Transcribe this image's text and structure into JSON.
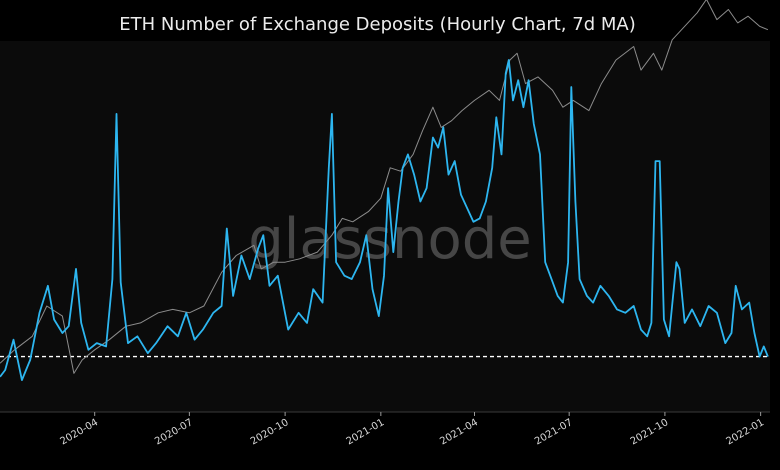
{
  "chart_data": {
    "type": "line",
    "title": "ETH Number of Exchange Deposits (Hourly Chart, 7d MA)",
    "watermark": "glassnode",
    "x_start": "2020-01-01",
    "x_end": "2022-01-10",
    "x_ticks": [
      "2020-04",
      "2020-07",
      "2020-10",
      "2021-01",
      "2021-04",
      "2021-07",
      "2021-10",
      "2022-01"
    ],
    "reference_line": {
      "style": "dashed",
      "color": "#ffffff",
      "y": 0.12
    },
    "colors": {
      "background": "#0b0b0b",
      "deposits": "#2db6f0",
      "price": "#8c8c8c"
    },
    "series": [
      {
        "color": "#2db6f0",
        "points": [
          [
            "2020-01-01",
            0.06
          ],
          [
            "2020-01-06",
            0.08
          ],
          [
            "2020-01-14",
            0.17
          ],
          [
            "2020-01-22",
            0.05
          ],
          [
            "2020-01-30",
            0.11
          ],
          [
            "2020-02-08",
            0.25
          ],
          [
            "2020-02-16",
            0.33
          ],
          [
            "2020-02-22",
            0.23
          ],
          [
            "2020-03-01",
            0.19
          ],
          [
            "2020-03-07",
            0.21
          ],
          [
            "2020-03-14",
            0.38
          ],
          [
            "2020-03-19",
            0.22
          ],
          [
            "2020-03-26",
            0.14
          ],
          [
            "2020-04-03",
            0.16
          ],
          [
            "2020-04-12",
            0.15
          ],
          [
            "2020-04-18",
            0.35
          ],
          [
            "2020-04-22",
            0.84
          ],
          [
            "2020-04-26",
            0.34
          ],
          [
            "2020-05-03",
            0.16
          ],
          [
            "2020-05-12",
            0.18
          ],
          [
            "2020-05-22",
            0.13
          ],
          [
            "2020-05-30",
            0.16
          ],
          [
            "2020-06-10",
            0.21
          ],
          [
            "2020-06-20",
            0.18
          ],
          [
            "2020-06-28",
            0.25
          ],
          [
            "2020-07-06",
            0.17
          ],
          [
            "2020-07-14",
            0.2
          ],
          [
            "2020-07-24",
            0.25
          ],
          [
            "2020-08-01",
            0.27
          ],
          [
            "2020-08-06",
            0.5
          ],
          [
            "2020-08-12",
            0.3
          ],
          [
            "2020-08-20",
            0.42
          ],
          [
            "2020-08-28",
            0.35
          ],
          [
            "2020-09-05",
            0.44
          ],
          [
            "2020-09-10",
            0.48
          ],
          [
            "2020-09-16",
            0.33
          ],
          [
            "2020-09-24",
            0.36
          ],
          [
            "2020-10-04",
            0.2
          ],
          [
            "2020-10-14",
            0.25
          ],
          [
            "2020-10-22",
            0.22
          ],
          [
            "2020-10-28",
            0.32
          ],
          [
            "2020-11-06",
            0.28
          ],
          [
            "2020-11-12",
            0.68
          ],
          [
            "2020-11-15",
            0.84
          ],
          [
            "2020-11-19",
            0.4
          ],
          [
            "2020-11-27",
            0.36
          ],
          [
            "2020-12-04",
            0.35
          ],
          [
            "2020-12-12",
            0.4
          ],
          [
            "2020-12-18",
            0.48
          ],
          [
            "2020-12-24",
            0.32
          ],
          [
            "2020-12-30",
            0.24
          ],
          [
            "2021-01-04",
            0.36
          ],
          [
            "2021-01-08",
            0.62
          ],
          [
            "2021-01-13",
            0.43
          ],
          [
            "2021-01-18",
            0.58
          ],
          [
            "2021-01-22",
            0.68
          ],
          [
            "2021-01-27",
            0.72
          ],
          [
            "2021-02-02",
            0.66
          ],
          [
            "2021-02-08",
            0.58
          ],
          [
            "2021-02-14",
            0.62
          ],
          [
            "2021-02-20",
            0.77
          ],
          [
            "2021-02-25",
            0.74
          ],
          [
            "2021-03-02",
            0.8
          ],
          [
            "2021-03-07",
            0.66
          ],
          [
            "2021-03-13",
            0.7
          ],
          [
            "2021-03-19",
            0.6
          ],
          [
            "2021-03-25",
            0.56
          ],
          [
            "2021-03-31",
            0.52
          ],
          [
            "2021-04-06",
            0.53
          ],
          [
            "2021-04-12",
            0.58
          ],
          [
            "2021-04-18",
            0.68
          ],
          [
            "2021-04-22",
            0.83
          ],
          [
            "2021-04-27",
            0.72
          ],
          [
            "2021-05-01",
            0.96
          ],
          [
            "2021-05-04",
            1.0
          ],
          [
            "2021-05-08",
            0.88
          ],
          [
            "2021-05-13",
            0.94
          ],
          [
            "2021-05-18",
            0.86
          ],
          [
            "2021-05-23",
            0.94
          ],
          [
            "2021-05-28",
            0.81
          ],
          [
            "2021-06-03",
            0.72
          ],
          [
            "2021-06-08",
            0.4
          ],
          [
            "2021-06-14",
            0.35
          ],
          [
            "2021-06-20",
            0.3
          ],
          [
            "2021-06-25",
            0.28
          ],
          [
            "2021-06-30",
            0.4
          ],
          [
            "2021-07-03",
            0.92
          ],
          [
            "2021-07-07",
            0.58
          ],
          [
            "2021-07-11",
            0.35
          ],
          [
            "2021-07-18",
            0.3
          ],
          [
            "2021-07-24",
            0.28
          ],
          [
            "2021-07-31",
            0.33
          ],
          [
            "2021-08-08",
            0.3
          ],
          [
            "2021-08-16",
            0.26
          ],
          [
            "2021-08-24",
            0.25
          ],
          [
            "2021-09-01",
            0.27
          ],
          [
            "2021-09-08",
            0.2
          ],
          [
            "2021-09-14",
            0.18
          ],
          [
            "2021-09-18",
            0.22
          ],
          [
            "2021-09-22",
            0.7
          ],
          [
            "2021-09-26",
            0.7
          ],
          [
            "2021-09-30",
            0.23
          ],
          [
            "2021-10-05",
            0.18
          ],
          [
            "2021-10-12",
            0.4
          ],
          [
            "2021-10-15",
            0.38
          ],
          [
            "2021-10-20",
            0.22
          ],
          [
            "2021-10-27",
            0.26
          ],
          [
            "2021-11-04",
            0.21
          ],
          [
            "2021-11-12",
            0.27
          ],
          [
            "2021-11-20",
            0.25
          ],
          [
            "2021-11-28",
            0.16
          ],
          [
            "2021-12-04",
            0.19
          ],
          [
            "2021-12-08",
            0.33
          ],
          [
            "2021-12-14",
            0.26
          ],
          [
            "2021-12-21",
            0.28
          ],
          [
            "2021-12-26",
            0.19
          ],
          [
            "2021-12-31",
            0.12
          ],
          [
            "2022-01-04",
            0.15
          ],
          [
            "2022-01-08",
            0.12
          ]
        ]
      },
      {
        "color": "#8c8c8c",
        "points": [
          [
            "2020-01-01",
            0.1
          ],
          [
            "2020-01-15",
            0.14
          ],
          [
            "2020-02-01",
            0.18
          ],
          [
            "2020-02-15",
            0.27
          ],
          [
            "2020-03-01",
            0.24
          ],
          [
            "2020-03-12",
            0.07
          ],
          [
            "2020-03-20",
            0.11
          ],
          [
            "2020-04-01",
            0.14
          ],
          [
            "2020-04-15",
            0.17
          ],
          [
            "2020-05-01",
            0.21
          ],
          [
            "2020-05-15",
            0.22
          ],
          [
            "2020-06-01",
            0.25
          ],
          [
            "2020-06-15",
            0.26
          ],
          [
            "2020-07-01",
            0.25
          ],
          [
            "2020-07-15",
            0.27
          ],
          [
            "2020-08-01",
            0.37
          ],
          [
            "2020-08-15",
            0.42
          ],
          [
            "2020-09-01",
            0.45
          ],
          [
            "2020-09-08",
            0.38
          ],
          [
            "2020-09-20",
            0.4
          ],
          [
            "2020-10-01",
            0.4
          ],
          [
            "2020-10-15",
            0.41
          ],
          [
            "2020-11-01",
            0.43
          ],
          [
            "2020-11-15",
            0.48
          ],
          [
            "2020-11-25",
            0.53
          ],
          [
            "2020-12-05",
            0.52
          ],
          [
            "2020-12-20",
            0.55
          ],
          [
            "2021-01-01",
            0.59
          ],
          [
            "2021-01-10",
            0.68
          ],
          [
            "2021-01-20",
            0.67
          ],
          [
            "2021-02-01",
            0.72
          ],
          [
            "2021-02-10",
            0.79
          ],
          [
            "2021-02-20",
            0.86
          ],
          [
            "2021-02-28",
            0.8
          ],
          [
            "2021-03-10",
            0.82
          ],
          [
            "2021-03-20",
            0.85
          ],
          [
            "2021-04-01",
            0.88
          ],
          [
            "2021-04-15",
            0.91
          ],
          [
            "2021-04-25",
            0.88
          ],
          [
            "2021-05-05",
            1.0
          ],
          [
            "2021-05-12",
            1.02
          ],
          [
            "2021-05-20",
            0.93
          ],
          [
            "2021-06-01",
            0.95
          ],
          [
            "2021-06-15",
            0.91
          ],
          [
            "2021-06-25",
            0.86
          ],
          [
            "2021-07-05",
            0.88
          ],
          [
            "2021-07-20",
            0.85
          ],
          [
            "2021-08-01",
            0.93
          ],
          [
            "2021-08-15",
            1.0
          ],
          [
            "2021-09-01",
            1.04
          ],
          [
            "2021-09-08",
            0.97
          ],
          [
            "2021-09-20",
            1.02
          ],
          [
            "2021-09-28",
            0.97
          ],
          [
            "2021-10-08",
            1.06
          ],
          [
            "2021-10-20",
            1.1
          ],
          [
            "2021-11-01",
            1.14
          ],
          [
            "2021-11-10",
            1.18
          ],
          [
            "2021-11-20",
            1.12
          ],
          [
            "2021-12-01",
            1.15
          ],
          [
            "2021-12-10",
            1.11
          ],
          [
            "2021-12-20",
            1.13
          ],
          [
            "2021-12-31",
            1.1
          ],
          [
            "2022-01-08",
            1.09
          ]
        ]
      }
    ]
  }
}
